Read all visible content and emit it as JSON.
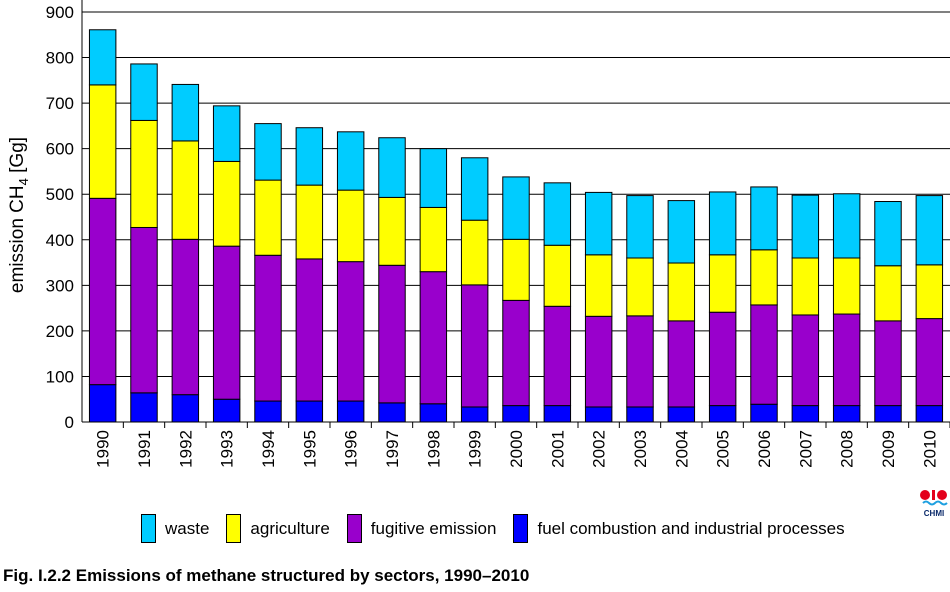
{
  "chart_data": {
    "type": "bar",
    "stacked": true,
    "categories": [
      "1990",
      "1991",
      "1992",
      "1993",
      "1994",
      "1995",
      "1996",
      "1997",
      "1998",
      "1999",
      "2000",
      "2001",
      "2002",
      "2003",
      "2004",
      "2005",
      "2006",
      "2007",
      "2008",
      "2009",
      "2010"
    ],
    "series": [
      {
        "name": "fuel combustion and industrial processes",
        "color": "#0000ff",
        "values": [
          82,
          64,
          60,
          50,
          46,
          46,
          46,
          42,
          40,
          33,
          36,
          36,
          33,
          33,
          33,
          36,
          39,
          36,
          36,
          36,
          36
        ]
      },
      {
        "name": "fugitive emission",
        "color": "#9900cc",
        "values": [
          409,
          363,
          341,
          336,
          320,
          312,
          306,
          302,
          290,
          268,
          231,
          218,
          199,
          200,
          189,
          205,
          218,
          199,
          201,
          186,
          191
        ]
      },
      {
        "name": "agriculture",
        "color": "#ffff00",
        "values": [
          249,
          235,
          216,
          186,
          165,
          162,
          157,
          149,
          141,
          142,
          134,
          134,
          135,
          127,
          127,
          126,
          121,
          125,
          123,
          121,
          118
        ]
      },
      {
        "name": "waste",
        "color": "#00ccff",
        "values": [
          121,
          124,
          124,
          122,
          124,
          126,
          128,
          131,
          129,
          137,
          137,
          137,
          137,
          137,
          137,
          138,
          138,
          138,
          141,
          141,
          152
        ]
      }
    ],
    "ylabel": "emission CH4 [Gg]",
    "ylim": [
      0,
      900
    ],
    "yticks": [
      0,
      100,
      200,
      300,
      400,
      500,
      600,
      700,
      800,
      900
    ],
    "grid": true,
    "legend_position": "bottom",
    "legend_order": [
      "waste",
      "agriculture",
      "fugitive emission",
      "fuel combustion and industrial processes"
    ]
  },
  "logo": {
    "text": "CHMI"
  },
  "caption": "Fig. I.2.2  Emissions of methane structured by sectors, 1990–2010"
}
